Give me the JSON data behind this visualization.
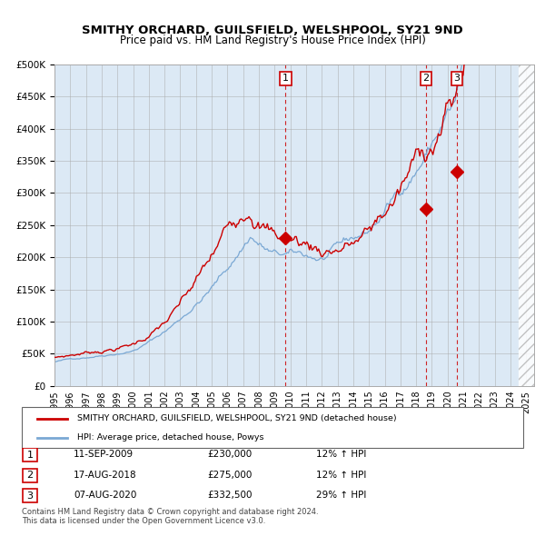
{
  "title_line1": "SMITHY ORCHARD, GUILSFIELD, WELSHPOOL, SY21 9ND",
  "title_line2": "Price paid vs. HM Land Registry's House Price Index (HPI)",
  "legend_line1": "SMITHY ORCHARD, GUILSFIELD, WELSHPOOL, SY21 9ND (detached house)",
  "legend_line2": "HPI: Average price, detached house, Powys",
  "sale_points": [
    {
      "label": "1",
      "date_num": 2009.69,
      "price": 230000,
      "date_str": "11-SEP-2009",
      "pct": "12%",
      "dir": "↑"
    },
    {
      "label": "2",
      "date_num": 2018.62,
      "price": 275000,
      "date_str": "17-AUG-2018",
      "pct": "12%",
      "dir": "↑"
    },
    {
      "label": "3",
      "date_num": 2020.6,
      "price": 332500,
      "date_str": "07-AUG-2020",
      "pct": "29%",
      "dir": "↑"
    }
  ],
  "footnote1": "Contains HM Land Registry data © Crown copyright and database right 2024.",
  "footnote2": "This data is licensed under the Open Government Licence v3.0.",
  "ylim": [
    0,
    500000
  ],
  "yticks": [
    0,
    50000,
    100000,
    150000,
    200000,
    250000,
    300000,
    350000,
    400000,
    450000,
    500000
  ],
  "background_color": "#dce9f5",
  "plot_bg_color": "#dce9f5",
  "red_line_color": "#cc0000",
  "blue_line_color": "#7aa8d4",
  "grid_color": "#aaaaaa",
  "sale_marker_color": "#cc0000",
  "vline_color": "#cc0000"
}
